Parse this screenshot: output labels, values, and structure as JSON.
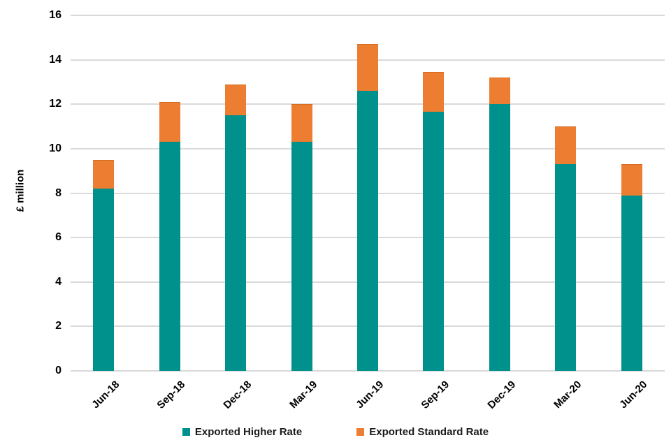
{
  "chart_data": {
    "type": "bar",
    "subtype": "stacked",
    "categories": [
      "Jun-18",
      "Sep-18",
      "Dec-18",
      "Mar-19",
      "Jun-19",
      "Sep-19",
      "Dec-19",
      "Mar-20",
      "Jun-20"
    ],
    "series": [
      {
        "name": "Exported Higher Rate",
        "color": "#00918C",
        "values": [
          8.2,
          10.3,
          11.5,
          10.3,
          12.6,
          11.65,
          12.0,
          9.3,
          7.9
        ]
      },
      {
        "name": "Exported Standard Rate",
        "color": "#ED7D31",
        "values": [
          1.3,
          1.8,
          1.4,
          1.7,
          2.1,
          1.8,
          1.2,
          1.7,
          1.4
        ]
      }
    ],
    "totals": [
      9.5,
      12.1,
      12.9,
      12.0,
      14.7,
      13.45,
      13.2,
      11.0,
      9.3
    ],
    "title": "",
    "xlabel": "",
    "ylabel": "£ million",
    "ylim": [
      0,
      16
    ],
    "ytick_step": 2,
    "ytick_labels": [
      "0",
      "2",
      "4",
      "6",
      "8",
      "10",
      "12",
      "14",
      "16"
    ],
    "grid": "horizontal",
    "gridline_color": "#D9D9D9",
    "legend_position": "bottom"
  }
}
